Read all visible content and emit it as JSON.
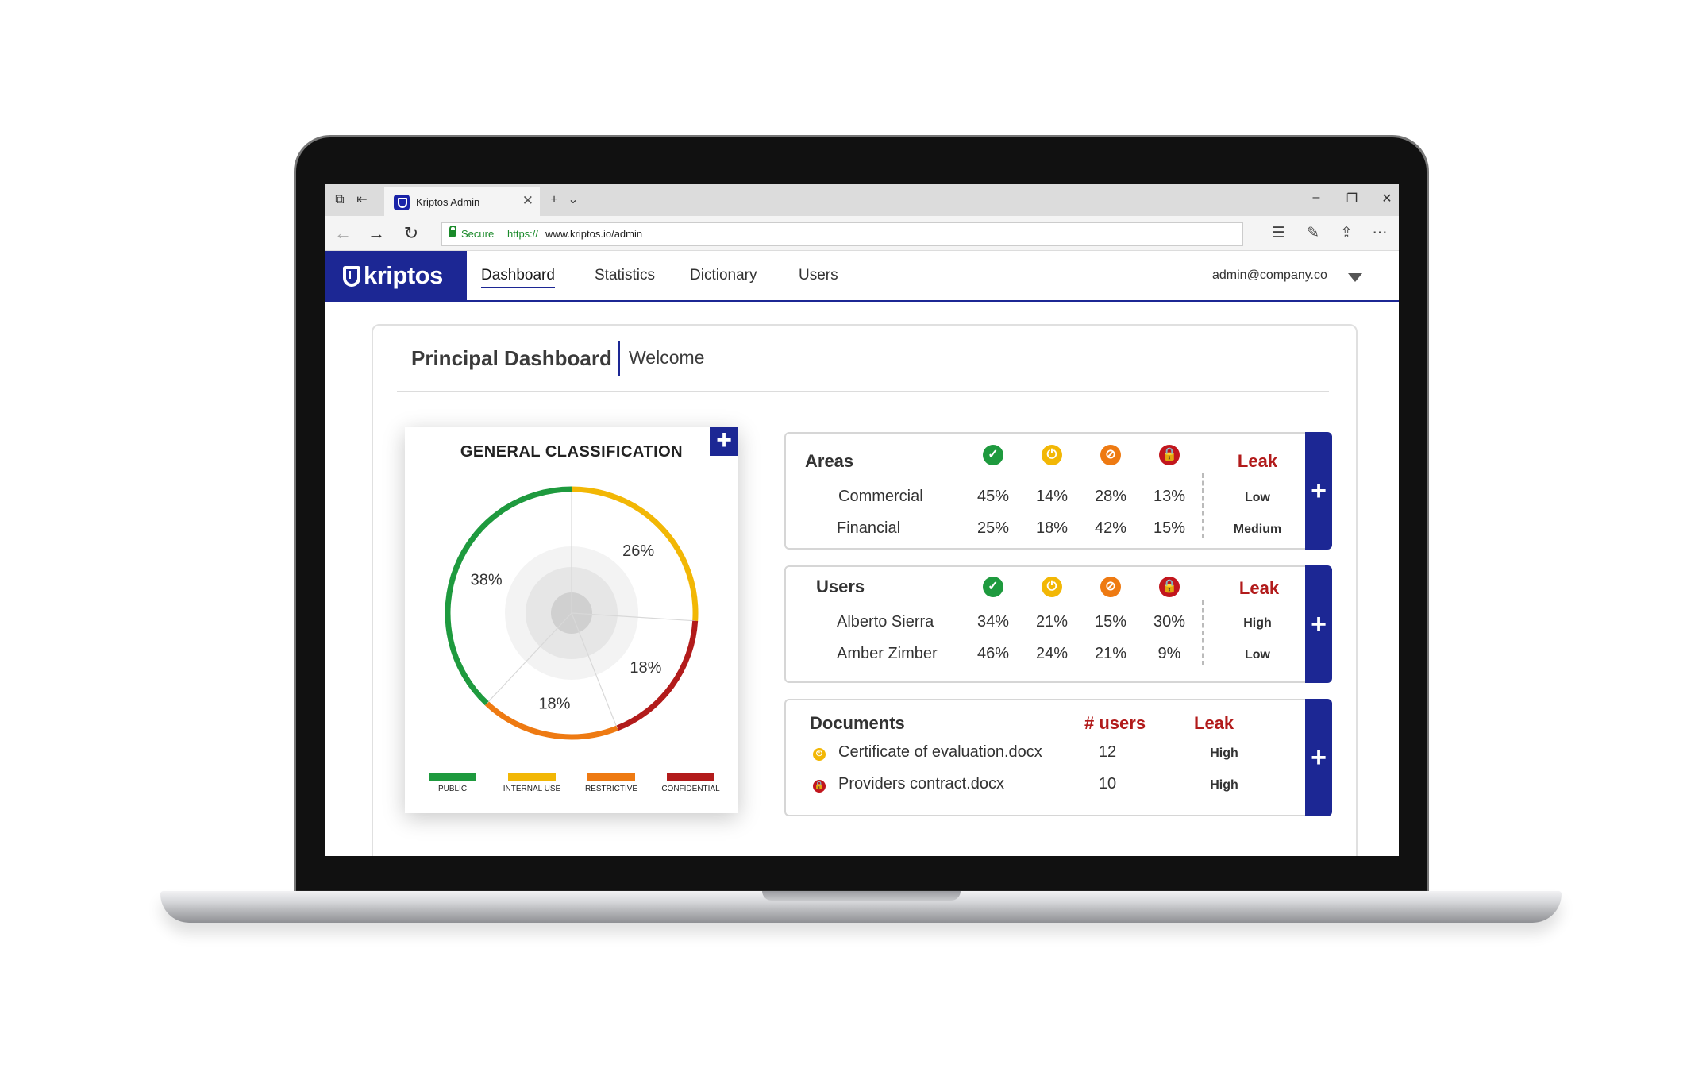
{
  "browser": {
    "tab_title": "Kriptos Admin",
    "secure_label": "Secure",
    "url_protocol": "https://",
    "url_rest": "www.kriptos.io/admin"
  },
  "app": {
    "logo_text": "kriptos",
    "nav": [
      {
        "label": "Dashboard",
        "active": true
      },
      {
        "label": "Statistics"
      },
      {
        "label": "Dictionary"
      },
      {
        "label": "Users"
      }
    ],
    "account": "admin@company.co"
  },
  "page": {
    "title": "Principal Dashboard",
    "subtitle": "Welcome"
  },
  "classification": {
    "title": "GENERAL CLASSIFICATION",
    "colors": {
      "public": "#1e9a3e",
      "internal_use": "#f2b705",
      "restrictive": "#ee7a12",
      "confidential": "#b21b1b"
    },
    "legend": [
      "PUBLIC",
      "INTERNAL USE",
      "RESTRICTIVE",
      "CONFIDENTIAL"
    ]
  },
  "chart_data": {
    "type": "pie",
    "title": "GENERAL CLASSIFICATION",
    "slices": [
      {
        "label": "INTERNAL USE",
        "value": 26,
        "display": "26%",
        "color": "#f2b705"
      },
      {
        "label": "CONFIDENTIAL",
        "value": 18,
        "display": "18%",
        "color": "#b21b1b"
      },
      {
        "label": "RESTRICTIVE",
        "value": 18,
        "display": "18%",
        "color": "#ee7a12"
      },
      {
        "label": "PUBLIC",
        "value": 38,
        "display": "38%",
        "color": "#1e9a3e"
      }
    ],
    "legend_position": "bottom"
  },
  "areas": {
    "heading": "Areas",
    "leak_label": "Leak",
    "rows": [
      {
        "name": "Commercial",
        "public": "45%",
        "internal": "14%",
        "restrictive": "28%",
        "confidential": "13%",
        "leak": "Low"
      },
      {
        "name": "Financial",
        "public": "25%",
        "internal": "18%",
        "restrictive": "42%",
        "confidential": "15%",
        "leak": "Medium"
      }
    ]
  },
  "users": {
    "heading": "Users",
    "leak_label": "Leak",
    "rows": [
      {
        "name": "Alberto Sierra",
        "public": "34%",
        "internal": "21%",
        "restrictive": "15%",
        "confidential": "30%",
        "leak": "High"
      },
      {
        "name": "Amber Zimber",
        "public": "46%",
        "internal": "24%",
        "restrictive": "21%",
        "confidential": "9%",
        "leak": "Low"
      }
    ]
  },
  "documents": {
    "heading": "Documents",
    "users_label": "# users",
    "leak_label": "Leak",
    "rows": [
      {
        "name": "Certificate of evaluation.docx",
        "icon": "internal-use-icon",
        "users": "12",
        "leak": "High"
      },
      {
        "name": "Providers contract.docx",
        "icon": "confidential-lock-icon",
        "users": "10",
        "leak": "High"
      }
    ]
  }
}
